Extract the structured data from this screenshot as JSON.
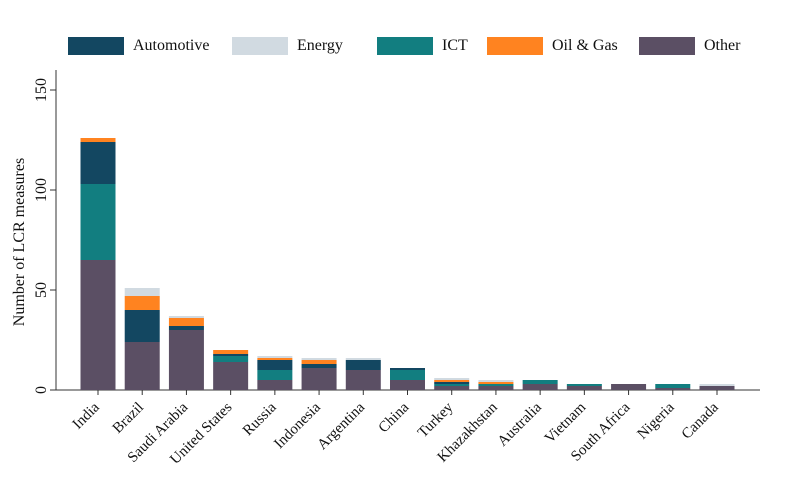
{
  "chart_data": {
    "type": "bar",
    "stacked": true,
    "title": "",
    "xlabel": "",
    "ylabel": "Number of LCR measures",
    "ylim": [
      0,
      160
    ],
    "yticks": [
      0,
      50,
      100,
      150
    ],
    "grid": false,
    "legend_position": "top",
    "categories": [
      "India",
      "Brazil",
      "Saudi Arabia",
      "United States",
      "Russia",
      "Indonesia",
      "Argentina",
      "China",
      "Turkey",
      "Khazakhstan",
      "Australia",
      "Vietnam",
      "South Africa",
      "Nigeria",
      "Canada"
    ],
    "series": [
      {
        "name": "Other",
        "color": "#5b4f64",
        "values": [
          65,
          24,
          30,
          14,
          5,
          11,
          10,
          5,
          2,
          2,
          3,
          2,
          3,
          1,
          2
        ]
      },
      {
        "name": "ICT",
        "color": "#127e80",
        "values": [
          38,
          0,
          0,
          3,
          5,
          0,
          0,
          5,
          1,
          1,
          2,
          1,
          0,
          2,
          0
        ]
      },
      {
        "name": "Automotive",
        "color": "#134761",
        "values": [
          21,
          16,
          2,
          1,
          5,
          2,
          5,
          1,
          1,
          0,
          0,
          0,
          0,
          0,
          0
        ]
      },
      {
        "name": "Oil & Gas",
        "color": "#ff8320",
        "values": [
          2,
          7,
          4,
          2,
          1,
          2,
          0,
          0,
          1,
          1,
          0,
          0,
          0,
          0,
          0
        ]
      },
      {
        "name": "Energy",
        "color": "#d1dae1",
        "values": [
          0,
          4,
          1,
          0,
          1,
          1,
          1,
          0,
          1,
          1,
          0,
          0,
          0,
          0,
          1
        ]
      }
    ]
  },
  "legend": {
    "items": [
      {
        "label": "Automotive",
        "color": "#134761"
      },
      {
        "label": "Energy",
        "color": "#d1dae1"
      },
      {
        "label": "ICT",
        "color": "#127e80"
      },
      {
        "label": "Oil & Gas",
        "color": "#ff8320"
      },
      {
        "label": "Other",
        "color": "#5b4f64"
      }
    ]
  },
  "colors": {
    "axis": "#333333",
    "background": "#ffffff"
  }
}
